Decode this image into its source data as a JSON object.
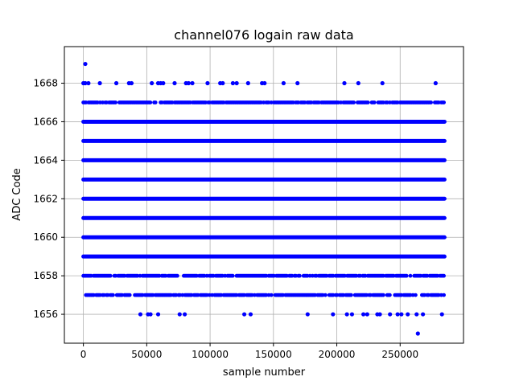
{
  "chart_data": {
    "type": "scatter",
    "title": "channel076 logain raw data",
    "xlabel": "sample number",
    "ylabel": "ADC Code",
    "xlim": [
      -15000,
      300000
    ],
    "ylim": [
      1654.5,
      1669.9
    ],
    "x_ticks": [
      0,
      50000,
      100000,
      150000,
      200000,
      250000
    ],
    "x_tick_labels": [
      "0",
      "50000",
      "100000",
      "150000",
      "200000",
      "250000"
    ],
    "y_ticks": [
      1656,
      1658,
      1660,
      1662,
      1664,
      1666,
      1668
    ],
    "y_tick_labels": [
      "1656",
      "1658",
      "1660",
      "1662",
      "1664",
      "1666",
      "1668"
    ],
    "grid": true,
    "marker_color": "#0000ff",
    "x_range_of_samples": [
      0,
      285000
    ],
    "dense_levels": [
      1659,
      1660,
      1661,
      1662,
      1663,
      1664,
      1665,
      1666
    ],
    "medium_levels": [
      {
        "y": 1658,
        "x": [
          0,
          285000
        ]
      },
      {
        "y": 1667,
        "x": [
          0,
          285000
        ]
      },
      {
        "y": 1657,
        "x": [
          2000,
          285000
        ]
      }
    ],
    "sparse_points": [
      {
        "x": 1500,
        "y": 1669
      },
      {
        "x": 0,
        "y": 1668
      },
      {
        "x": 1500,
        "y": 1668
      },
      {
        "x": 4000,
        "y": 1668
      },
      {
        "x": 13000,
        "y": 1668
      },
      {
        "x": 26000,
        "y": 1668
      },
      {
        "x": 36000,
        "y": 1668
      },
      {
        "x": 38000,
        "y": 1668
      },
      {
        "x": 54000,
        "y": 1668
      },
      {
        "x": 59000,
        "y": 1668
      },
      {
        "x": 61000,
        "y": 1668
      },
      {
        "x": 63000,
        "y": 1668
      },
      {
        "x": 72000,
        "y": 1668
      },
      {
        "x": 81000,
        "y": 1668
      },
      {
        "x": 83000,
        "y": 1668
      },
      {
        "x": 86000,
        "y": 1668
      },
      {
        "x": 98000,
        "y": 1668
      },
      {
        "x": 108000,
        "y": 1668
      },
      {
        "x": 110000,
        "y": 1668
      },
      {
        "x": 118000,
        "y": 1668
      },
      {
        "x": 121000,
        "y": 1668
      },
      {
        "x": 130000,
        "y": 1668
      },
      {
        "x": 141000,
        "y": 1668
      },
      {
        "x": 143000,
        "y": 1668
      },
      {
        "x": 158000,
        "y": 1668
      },
      {
        "x": 169000,
        "y": 1668
      },
      {
        "x": 206000,
        "y": 1668
      },
      {
        "x": 217000,
        "y": 1668
      },
      {
        "x": 236000,
        "y": 1668
      },
      {
        "x": 278000,
        "y": 1668
      },
      {
        "x": 45000,
        "y": 1656
      },
      {
        "x": 51000,
        "y": 1656
      },
      {
        "x": 53000,
        "y": 1656
      },
      {
        "x": 59000,
        "y": 1656
      },
      {
        "x": 76000,
        "y": 1656
      },
      {
        "x": 80000,
        "y": 1656
      },
      {
        "x": 127000,
        "y": 1656
      },
      {
        "x": 132000,
        "y": 1656
      },
      {
        "x": 177000,
        "y": 1656
      },
      {
        "x": 197000,
        "y": 1656
      },
      {
        "x": 208000,
        "y": 1656
      },
      {
        "x": 212000,
        "y": 1656
      },
      {
        "x": 221000,
        "y": 1656
      },
      {
        "x": 224000,
        "y": 1656
      },
      {
        "x": 232000,
        "y": 1656
      },
      {
        "x": 234000,
        "y": 1656
      },
      {
        "x": 242000,
        "y": 1656
      },
      {
        "x": 248000,
        "y": 1656
      },
      {
        "x": 251000,
        "y": 1656
      },
      {
        "x": 256000,
        "y": 1656
      },
      {
        "x": 263000,
        "y": 1656
      },
      {
        "x": 268000,
        "y": 1656
      },
      {
        "x": 283000,
        "y": 1656
      },
      {
        "x": 264000,
        "y": 1655
      }
    ]
  }
}
